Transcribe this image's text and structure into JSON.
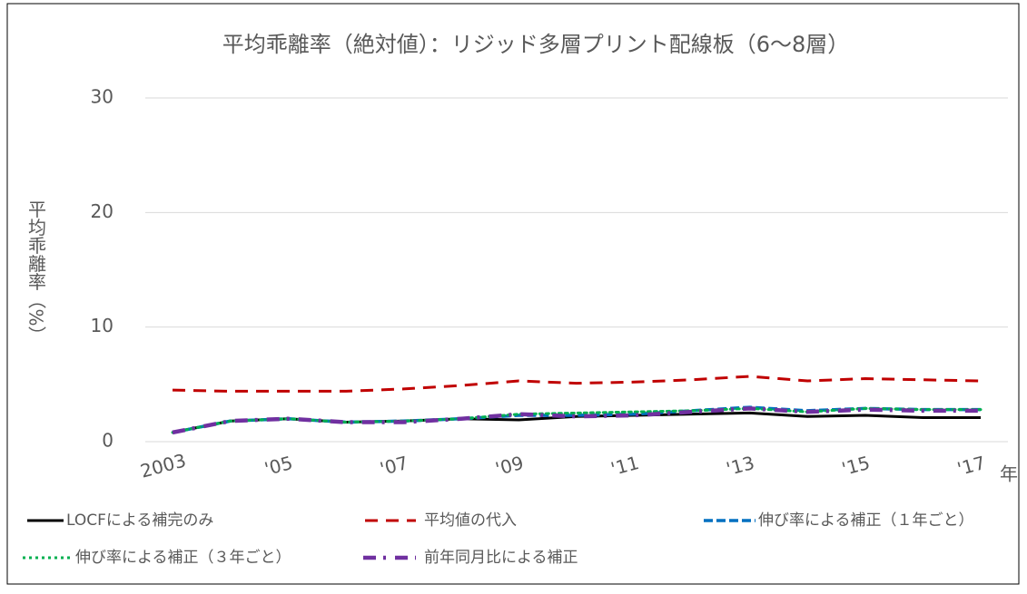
{
  "chart_data": {
    "type": "line",
    "title": "平均乖離率（絶対値）：リジッド多層プリント配線板（6～8層）",
    "y_label": "平均乖離率（%）",
    "x_label": "年",
    "categories": [
      "2003",
      null,
      "'05",
      null,
      "'07",
      null,
      "'09",
      null,
      "'11",
      null,
      "'13",
      null,
      "'15",
      null,
      "'17"
    ],
    "series": [
      {
        "name": "LOCFによる補完のみ",
        "color": "#000000",
        "values": [
          0.8,
          1.8,
          2.0,
          1.7,
          1.8,
          2.0,
          1.9,
          2.2,
          2.3,
          2.4,
          2.5,
          2.2,
          2.3,
          2.1,
          2.1
        ]
      },
      {
        "name": "平均値の代入",
        "color": "#c00000",
        "values": [
          4.5,
          4.4,
          4.4,
          4.4,
          4.6,
          4.9,
          5.3,
          5.1,
          5.2,
          5.4,
          5.7,
          5.3,
          5.5,
          5.4,
          5.3
        ]
      },
      {
        "name": "伸び率による補正（１年ごと）",
        "color": "#0070c0",
        "values": [
          0.8,
          1.8,
          2.0,
          1.7,
          1.8,
          2.0,
          2.3,
          2.3,
          2.4,
          2.7,
          3.0,
          2.7,
          2.9,
          2.8,
          2.8
        ]
      },
      {
        "name": "伸び率による補正（３年ごと）",
        "color": "#00b050",
        "values": [
          0.8,
          1.8,
          2.0,
          1.7,
          1.8,
          2.0,
          2.4,
          2.5,
          2.6,
          2.7,
          2.9,
          2.6,
          2.9,
          2.8,
          2.8
        ]
      },
      {
        "name": "前年同月比による補正",
        "color": "#7030a0",
        "values": [
          0.8,
          1.8,
          2.0,
          1.7,
          1.7,
          2.0,
          2.4,
          2.2,
          2.3,
          2.6,
          2.9,
          2.6,
          2.8,
          2.7,
          2.7
        ]
      }
    ],
    "ylim": [
      0,
      30
    ],
    "yticks": [
      0,
      10,
      20,
      30
    ],
    "grid": true,
    "legend": "bottom"
  }
}
